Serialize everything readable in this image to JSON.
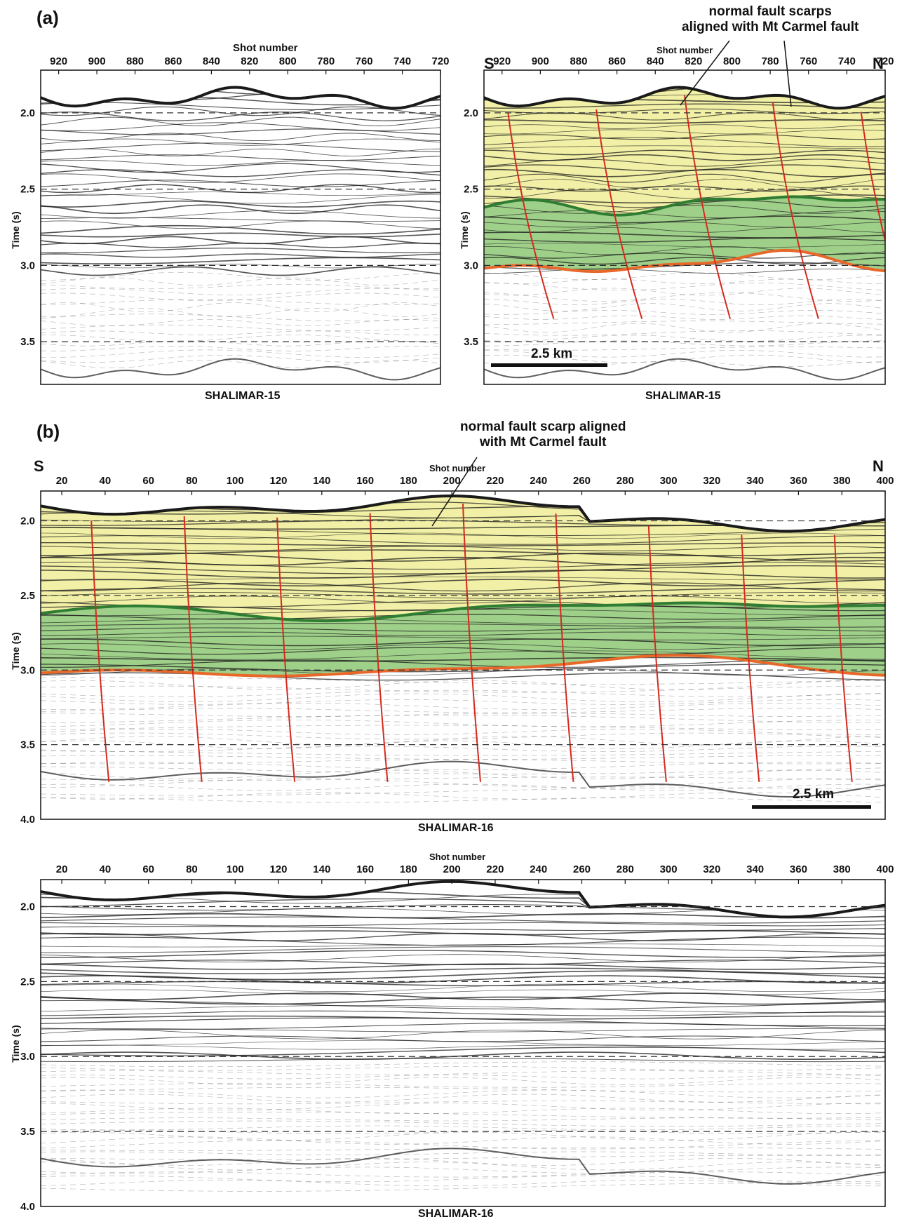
{
  "panel_a_label": "(a)",
  "panel_b_label": "(b)",
  "shot_number_label": "Shot number",
  "time_axis_label": "Time (s)",
  "south_label": "S",
  "north_label": "N",
  "scale_label": "2.5 km",
  "annotation_a": [
    "normal fault scarps",
    "aligned with Mt Carmel fault"
  ],
  "annotation_b": [
    "normal fault scarp aligned",
    "with Mt Carmel fault"
  ],
  "section_a_name": "SHALIMAR-15",
  "section_b_name": "SHALIMAR-16",
  "section_a": {
    "shot_ticks": [
      "920",
      "900",
      "880",
      "860",
      "840",
      "820",
      "800",
      "780",
      "760",
      "740",
      "720"
    ],
    "time_ticks": [
      "2.0",
      "2.5",
      "3.0",
      "3.5"
    ]
  },
  "section_b": {
    "shot_ticks": [
      "20",
      "40",
      "60",
      "80",
      "100",
      "120",
      "140",
      "160",
      "180",
      "200",
      "220",
      "240",
      "260",
      "280",
      "300",
      "320",
      "340",
      "360",
      "380",
      "400"
    ],
    "time_ticks": [
      "2.0",
      "2.5",
      "3.0",
      "3.5",
      "4.0"
    ]
  },
  "colors": {
    "upper_unit": "#f1f0a6",
    "lower_unit": "#9fd08a",
    "fault": "#d42a1e",
    "base_horizon": "#e8682a",
    "green_horizon": "#2f7d32",
    "reflector": "#1a1a1a"
  }
}
